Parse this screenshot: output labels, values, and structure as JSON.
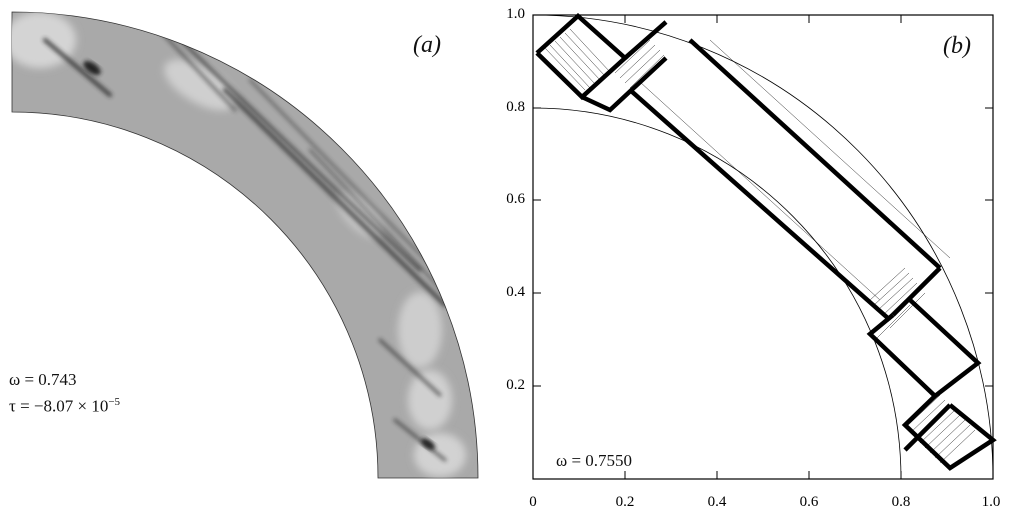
{
  "panel_a": {
    "label": "(a)",
    "omega_text": "ω = 0.743",
    "tau_prefix": "τ = −8.07 × 10",
    "tau_exponent": "−5"
  },
  "panel_b": {
    "label": "(b)",
    "omega_text": "ω = 0.7550",
    "x_ticks": [
      "0",
      "0.2",
      "0.4",
      "0.6",
      "0.8",
      "1.0"
    ],
    "y_ticks": [
      "0.2",
      "0.4",
      "0.6",
      "0.8",
      "1.0"
    ],
    "xlim": [
      0,
      1
    ],
    "ylim": [
      0,
      1
    ],
    "inner_radius": 0.8,
    "outer_radius": 1.0
  },
  "colors": {
    "ring_fill": "#a9a9a9",
    "ray_dark": "#2a2a2a",
    "rays": "#000000",
    "frame": "#000000"
  }
}
